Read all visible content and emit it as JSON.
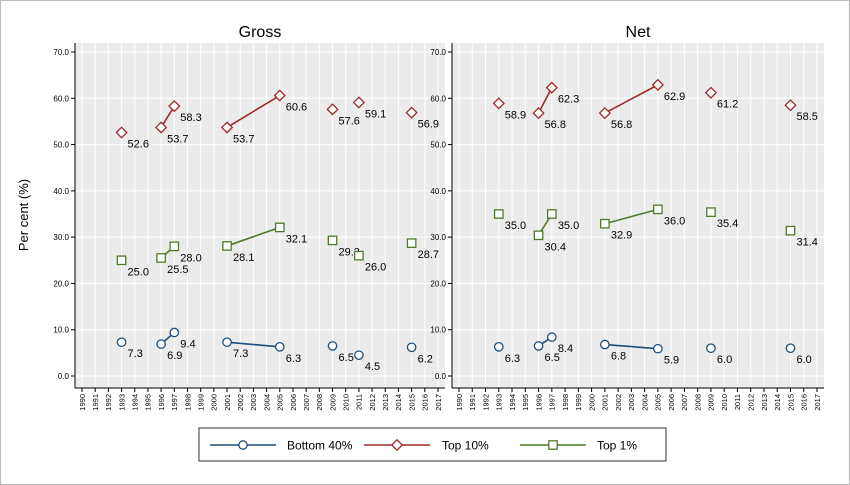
{
  "chart_data": {
    "type": "line",
    "ylabel": "Per cent (%)",
    "ylim": [
      0,
      70
    ],
    "yticks": [
      "0.0",
      "10.0",
      "20.0",
      "30.0",
      "40.0",
      "50.0",
      "60.0",
      "70.0"
    ],
    "xlim": [
      1990,
      2017
    ],
    "xticks": [
      "1990",
      "1991",
      "1992",
      "1993",
      "1994",
      "1995",
      "1996",
      "1997",
      "1998",
      "1999",
      "2000",
      "2001",
      "2002",
      "2003",
      "2004",
      "2005",
      "2006",
      "2007",
      "2008",
      "2009",
      "2010",
      "2011",
      "2012",
      "2013",
      "2014",
      "2015",
      "2016",
      "2017"
    ],
    "grid": true,
    "legend_position": "bottom",
    "series_styles": [
      {
        "name": "Bottom 40%",
        "color": "#1f4e79",
        "marker": "circle"
      },
      {
        "name": "Top 10%",
        "color": "#9e2a2b",
        "marker": "diamond"
      },
      {
        "name": "Top 1%",
        "color": "#4f7a28",
        "marker": "square"
      }
    ],
    "panels": [
      {
        "title": "Gross",
        "series": [
          {
            "name": "Bottom 40%",
            "segments": [
              [
                {
                  "x": 1993,
                  "y": 7.3,
                  "label": "7.3"
                }
              ],
              [
                {
                  "x": 1996,
                  "y": 6.9,
                  "label": "6.9"
                },
                {
                  "x": 1997,
                  "y": 9.4,
                  "label": "9.4"
                }
              ],
              [
                {
                  "x": 2001,
                  "y": 7.3,
                  "label": "7.3"
                },
                {
                  "x": 2005,
                  "y": 6.3,
                  "label": "6.3"
                }
              ],
              [
                {
                  "x": 2009,
                  "y": 6.5,
                  "label": "6.5"
                }
              ],
              [
                {
                  "x": 2011,
                  "y": 4.5,
                  "label": "4.5"
                }
              ],
              [
                {
                  "x": 2015,
                  "y": 6.2,
                  "label": "6.2"
                }
              ]
            ]
          },
          {
            "name": "Top 10%",
            "segments": [
              [
                {
                  "x": 1993,
                  "y": 52.6,
                  "label": "52.6"
                }
              ],
              [
                {
                  "x": 1996,
                  "y": 53.7,
                  "label": "53.7"
                },
                {
                  "x": 1997,
                  "y": 58.3,
                  "label": "58.3"
                }
              ],
              [
                {
                  "x": 2001,
                  "y": 53.7,
                  "label": "53.7"
                },
                {
                  "x": 2005,
                  "y": 60.6,
                  "label": "60.6"
                }
              ],
              [
                {
                  "x": 2009,
                  "y": 57.6,
                  "label": "57.6"
                }
              ],
              [
                {
                  "x": 2011,
                  "y": 59.1,
                  "label": "59.1"
                }
              ],
              [
                {
                  "x": 2015,
                  "y": 56.9,
                  "label": "56.9"
                }
              ]
            ]
          },
          {
            "name": "Top 1%",
            "segments": [
              [
                {
                  "x": 1993,
                  "y": 25.0,
                  "label": "25.0"
                }
              ],
              [
                {
                  "x": 1996,
                  "y": 25.5,
                  "label": "25.5"
                },
                {
                  "x": 1997,
                  "y": 28.0,
                  "label": "28.0"
                }
              ],
              [
                {
                  "x": 2001,
                  "y": 28.1,
                  "label": "28.1"
                },
                {
                  "x": 2005,
                  "y": 32.1,
                  "label": "32.1"
                }
              ],
              [
                {
                  "x": 2009,
                  "y": 29.3,
                  "label": "29.3"
                }
              ],
              [
                {
                  "x": 2011,
                  "y": 26.0,
                  "label": "26.0"
                }
              ],
              [
                {
                  "x": 2015,
                  "y": 28.7,
                  "label": "28.7"
                }
              ]
            ]
          }
        ]
      },
      {
        "title": "Net",
        "series": [
          {
            "name": "Bottom 40%",
            "segments": [
              [
                {
                  "x": 1993,
                  "y": 6.3,
                  "label": "6.3"
                }
              ],
              [
                {
                  "x": 1996,
                  "y": 6.5,
                  "label": "6.5"
                },
                {
                  "x": 1997,
                  "y": 8.4,
                  "label": "8.4"
                }
              ],
              [
                {
                  "x": 2001,
                  "y": 6.8,
                  "label": "6.8"
                },
                {
                  "x": 2005,
                  "y": 5.9,
                  "label": "5.9"
                }
              ],
              [
                {
                  "x": 2009,
                  "y": 6.0,
                  "label": "6.0"
                }
              ],
              [
                {
                  "x": 2015,
                  "y": 6.0,
                  "label": "6.0"
                }
              ]
            ]
          },
          {
            "name": "Top 10%",
            "segments": [
              [
                {
                  "x": 1993,
                  "y": 58.9,
                  "label": "58.9"
                }
              ],
              [
                {
                  "x": 1996,
                  "y": 56.8,
                  "label": "56.8"
                },
                {
                  "x": 1997,
                  "y": 62.3,
                  "label": "62.3"
                }
              ],
              [
                {
                  "x": 2001,
                  "y": 56.8,
                  "label": "56.8"
                },
                {
                  "x": 2005,
                  "y": 62.9,
                  "label": "62.9"
                }
              ],
              [
                {
                  "x": 2009,
                  "y": 61.2,
                  "label": "61.2"
                }
              ],
              [
                {
                  "x": 2015,
                  "y": 58.5,
                  "label": "58.5"
                }
              ]
            ]
          },
          {
            "name": "Top 1%",
            "segments": [
              [
                {
                  "x": 1993,
                  "y": 35.0,
                  "label": "35.0"
                }
              ],
              [
                {
                  "x": 1996,
                  "y": 30.4,
                  "label": "30.4"
                },
                {
                  "x": 1997,
                  "y": 35.0,
                  "label": "35.0"
                }
              ],
              [
                {
                  "x": 2001,
                  "y": 32.9,
                  "label": "32.9"
                },
                {
                  "x": 2005,
                  "y": 36.0,
                  "label": "36.0"
                }
              ],
              [
                {
                  "x": 2009,
                  "y": 35.4,
                  "label": "35.4"
                }
              ],
              [
                {
                  "x": 2015,
                  "y": 31.4,
                  "label": "31.4"
                }
              ]
            ]
          }
        ]
      }
    ],
    "legend": [
      "Bottom 40%",
      "Top 10%",
      "Top 1%"
    ]
  }
}
